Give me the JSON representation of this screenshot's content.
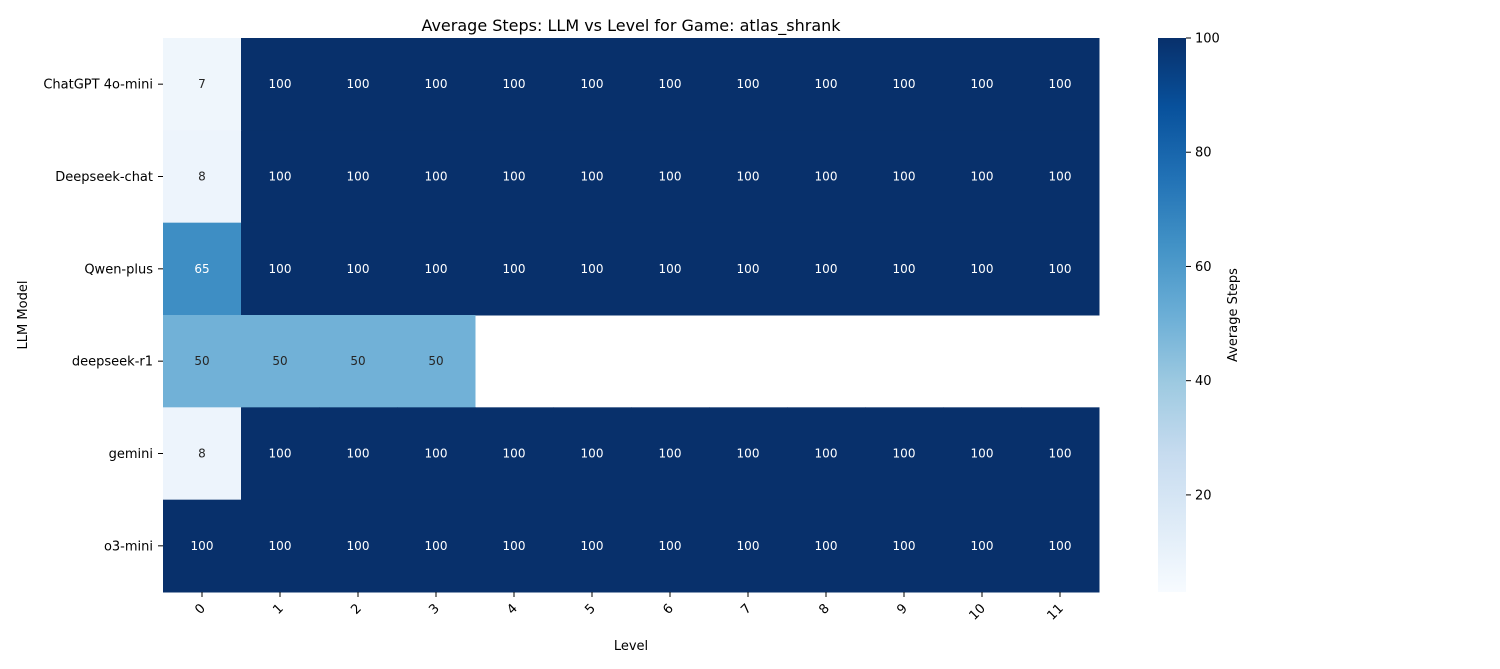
{
  "chart_data": {
    "type": "heatmap",
    "title": "Average Steps: LLM vs Level for Game: atlas_shrank",
    "xlabel": "Level",
    "ylabel": "LLM Model",
    "x": [
      "0",
      "1",
      "2",
      "3",
      "4",
      "5",
      "6",
      "7",
      "8",
      "9",
      "10",
      "11"
    ],
    "y": [
      "ChatGPT 4o-mini",
      "Deepseek-chat",
      "Qwen-plus",
      "deepseek-r1",
      "gemini",
      "o3-mini"
    ],
    "values": [
      [
        7,
        100,
        100,
        100,
        100,
        100,
        100,
        100,
        100,
        100,
        100,
        100
      ],
      [
        8,
        100,
        100,
        100,
        100,
        100,
        100,
        100,
        100,
        100,
        100,
        100
      ],
      [
        65,
        100,
        100,
        100,
        100,
        100,
        100,
        100,
        100,
        100,
        100,
        100
      ],
      [
        50,
        50,
        50,
        50,
        null,
        null,
        null,
        null,
        null,
        null,
        null,
        null
      ],
      [
        8,
        100,
        100,
        100,
        100,
        100,
        100,
        100,
        100,
        100,
        100,
        100
      ],
      [
        100,
        100,
        100,
        100,
        100,
        100,
        100,
        100,
        100,
        100,
        100,
        100
      ]
    ],
    "colorbar": {
      "label": "Average Steps",
      "range": [
        3,
        100
      ],
      "ticks": [
        20,
        40,
        60,
        80,
        100
      ]
    },
    "colormap": "Blues",
    "grid": false
  }
}
